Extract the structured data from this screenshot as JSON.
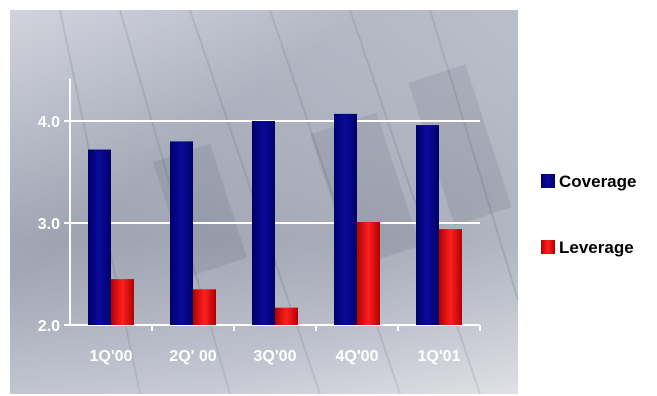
{
  "chart_data": {
    "type": "bar",
    "categories": [
      "1Q'00",
      "2Q' 00",
      "3Q'00",
      "4Q'00",
      "1Q'01"
    ],
    "series": [
      {
        "name": "Coverage",
        "values": [
          3.72,
          3.8,
          4.0,
          4.07,
          3.96
        ],
        "color": "#000080"
      },
      {
        "name": "Leverage",
        "values": [
          2.45,
          2.35,
          2.17,
          3.01,
          2.94
        ],
        "color": "#e01010"
      }
    ],
    "ylim": [
      2.0,
      4.2
    ],
    "yticks": [
      "2.0",
      "3.0",
      "4.0"
    ],
    "grid": true,
    "legend_position": "right",
    "background": "faded financial stock-table photograph (blue-gray)"
  }
}
